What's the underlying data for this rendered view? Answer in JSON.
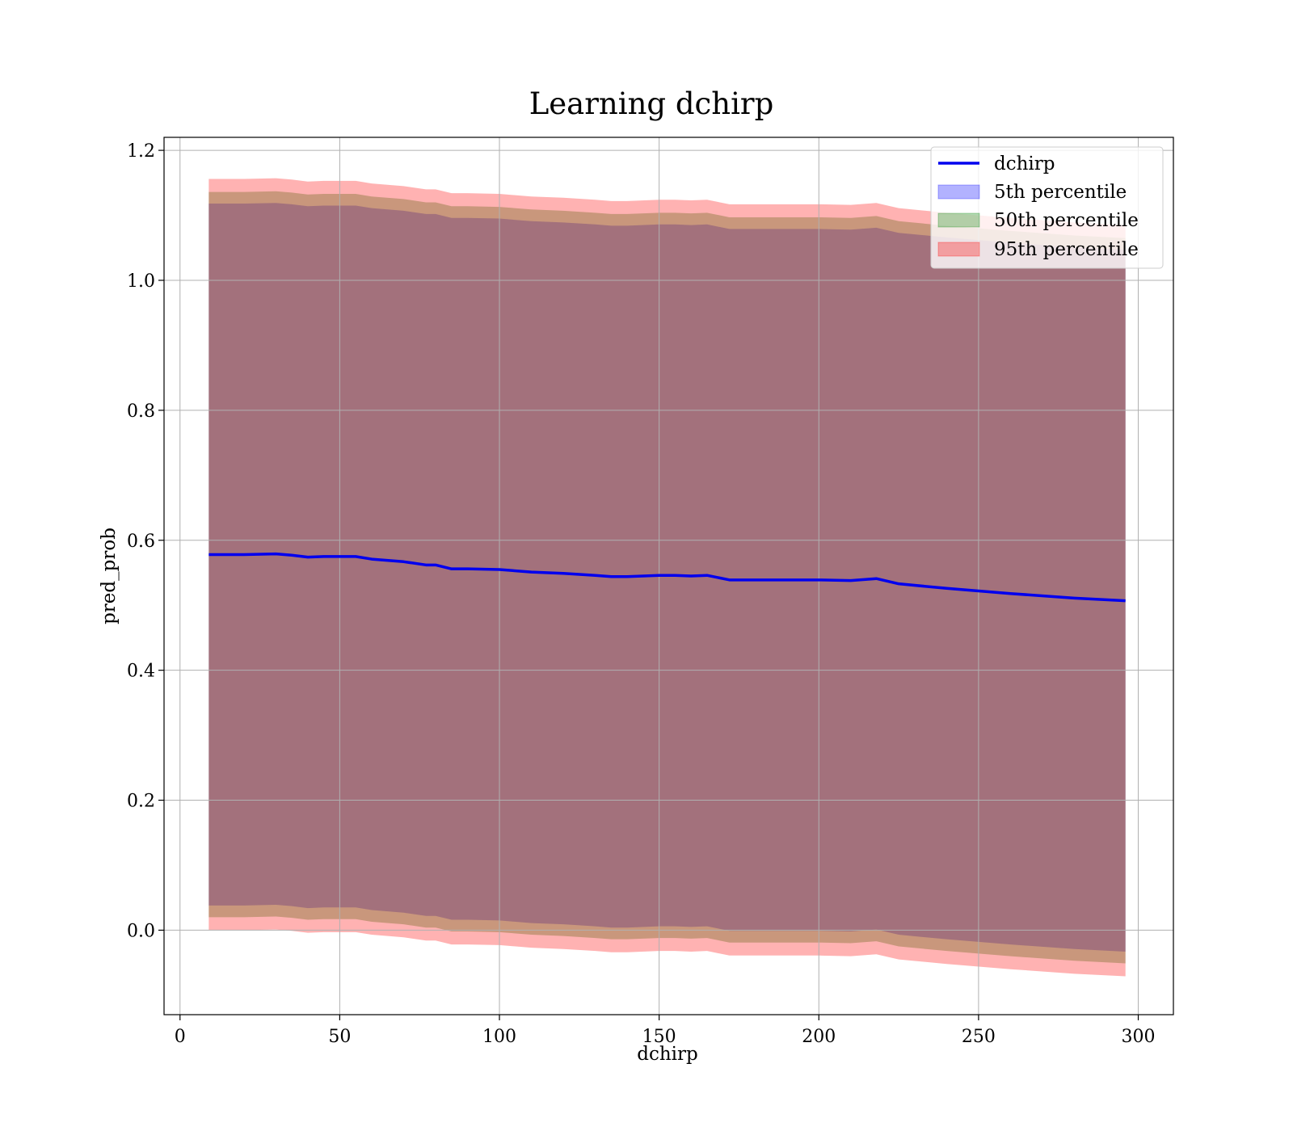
{
  "chart_data": {
    "type": "line",
    "title": "Learning dchirp",
    "xlabel": "dchirp",
    "ylabel": "pred_prob",
    "xlim": [
      -5,
      311
    ],
    "ylim": [
      -0.13,
      1.22
    ],
    "xticks": [
      0,
      50,
      100,
      150,
      200,
      250,
      300
    ],
    "yticks": [
      0.0,
      0.2,
      0.4,
      0.6,
      0.8,
      1.0,
      1.2
    ],
    "grid": true,
    "legend_position": "upper right",
    "x": [
      9,
      20,
      30,
      35,
      40,
      45,
      50,
      55,
      60,
      70,
      77,
      80,
      85,
      90,
      100,
      110,
      120,
      130,
      135,
      140,
      150,
      155,
      160,
      165,
      172,
      180,
      190,
      200,
      210,
      218,
      225,
      240,
      260,
      280,
      296
    ],
    "series": [
      {
        "name": "dchirp",
        "kind": "line",
        "color": "#0000ee",
        "values": [
          0.578,
          0.578,
          0.579,
          0.577,
          0.574,
          0.575,
          0.575,
          0.575,
          0.571,
          0.567,
          0.562,
          0.562,
          0.556,
          0.556,
          0.555,
          0.551,
          0.549,
          0.546,
          0.544,
          0.544,
          0.546,
          0.546,
          0.545,
          0.546,
          0.539,
          0.539,
          0.539,
          0.539,
          0.538,
          0.541,
          0.533,
          0.526,
          0.518,
          0.511,
          0.507
        ]
      },
      {
        "name": "5th percentile",
        "kind": "band",
        "color": "#0000ff",
        "opacity": 0.3,
        "half_width": 0.54
      },
      {
        "name": "50th percentile",
        "kind": "band",
        "color": "#008000",
        "opacity": 0.3,
        "half_width": 0.558
      },
      {
        "name": "95th percentile",
        "kind": "band",
        "color": "#ff0000",
        "opacity": 0.3,
        "half_width": 0.578
      }
    ]
  }
}
